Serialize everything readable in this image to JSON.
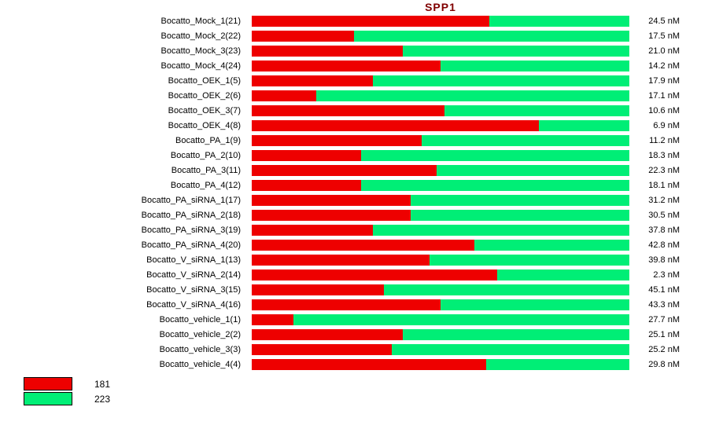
{
  "title": "SPP1",
  "legend": [
    {
      "label": "181",
      "color": "#ee0000"
    },
    {
      "label": "223",
      "color": "#00ee76"
    }
  ],
  "chart_data": {
    "type": "bar",
    "orientation": "horizontal",
    "stacked": true,
    "title": "SPP1",
    "xlabel": "",
    "ylabel": "",
    "xlim_percent": [
      0,
      100
    ],
    "grid": false,
    "legend_position": "bottom-left",
    "categories": [
      "Bocatto_Mock_1(21)",
      "Bocatto_Mock_2(22)",
      "Bocatto_Mock_3(23)",
      "Bocatto_Mock_4(24)",
      "Bocatto_OEK_1(5)",
      "Bocatto_OEK_2(6)",
      "Bocatto_OEK_3(7)",
      "Bocatto_OEK_4(8)",
      "Bocatto_PA_1(9)",
      "Bocatto_PA_2(10)",
      "Bocatto_PA_3(11)",
      "Bocatto_PA_4(12)",
      "Bocatto_PA_siRNA_1(17)",
      "Bocatto_PA_siRNA_2(18)",
      "Bocatto_PA_siRNA_3(19)",
      "Bocatto_PA_siRNA_4(20)",
      "Bocatto_V_siRNA_1(13)",
      "Bocatto_V_siRNA_2(14)",
      "Bocatto_V_siRNA_3(15)",
      "Bocatto_V_siRNA_4(16)",
      "Bocatto_vehicle_1(1)",
      "Bocatto_vehicle_2(2)",
      "Bocatto_vehicle_3(3)",
      "Bocatto_vehicle_4(4)"
    ],
    "series": [
      {
        "name": "181",
        "color": "#ee0000",
        "percent": [
          63,
          27,
          40,
          50,
          32,
          17,
          51,
          76,
          45,
          29,
          49,
          29,
          42,
          42,
          32,
          59,
          47,
          65,
          35,
          50,
          11,
          40,
          37,
          62
        ]
      },
      {
        "name": "223",
        "color": "#00ee76",
        "percent": [
          37,
          73,
          60,
          50,
          68,
          83,
          49,
          24,
          55,
          71,
          51,
          71,
          58,
          58,
          68,
          41,
          53,
          35,
          65,
          50,
          89,
          60,
          63,
          38
        ]
      }
    ],
    "value_labels": [
      "24.5 nM",
      "17.5 nM",
      "21.0 nM",
      "14.2 nM",
      "17.9 nM",
      "17.1 nM",
      "10.6 nM",
      "6.9 nM",
      "11.2 nM",
      "18.3 nM",
      "22.3 nM",
      "18.1 nM",
      "31.2 nM",
      "30.5 nM",
      "37.8 nM",
      "42.8 nM",
      "39.8 nM",
      "2.3 nM",
      "45.1 nM",
      "43.3 nM",
      "27.7 nM",
      "25.1 nM",
      "25.2 nM",
      "29.8 nM"
    ]
  }
}
